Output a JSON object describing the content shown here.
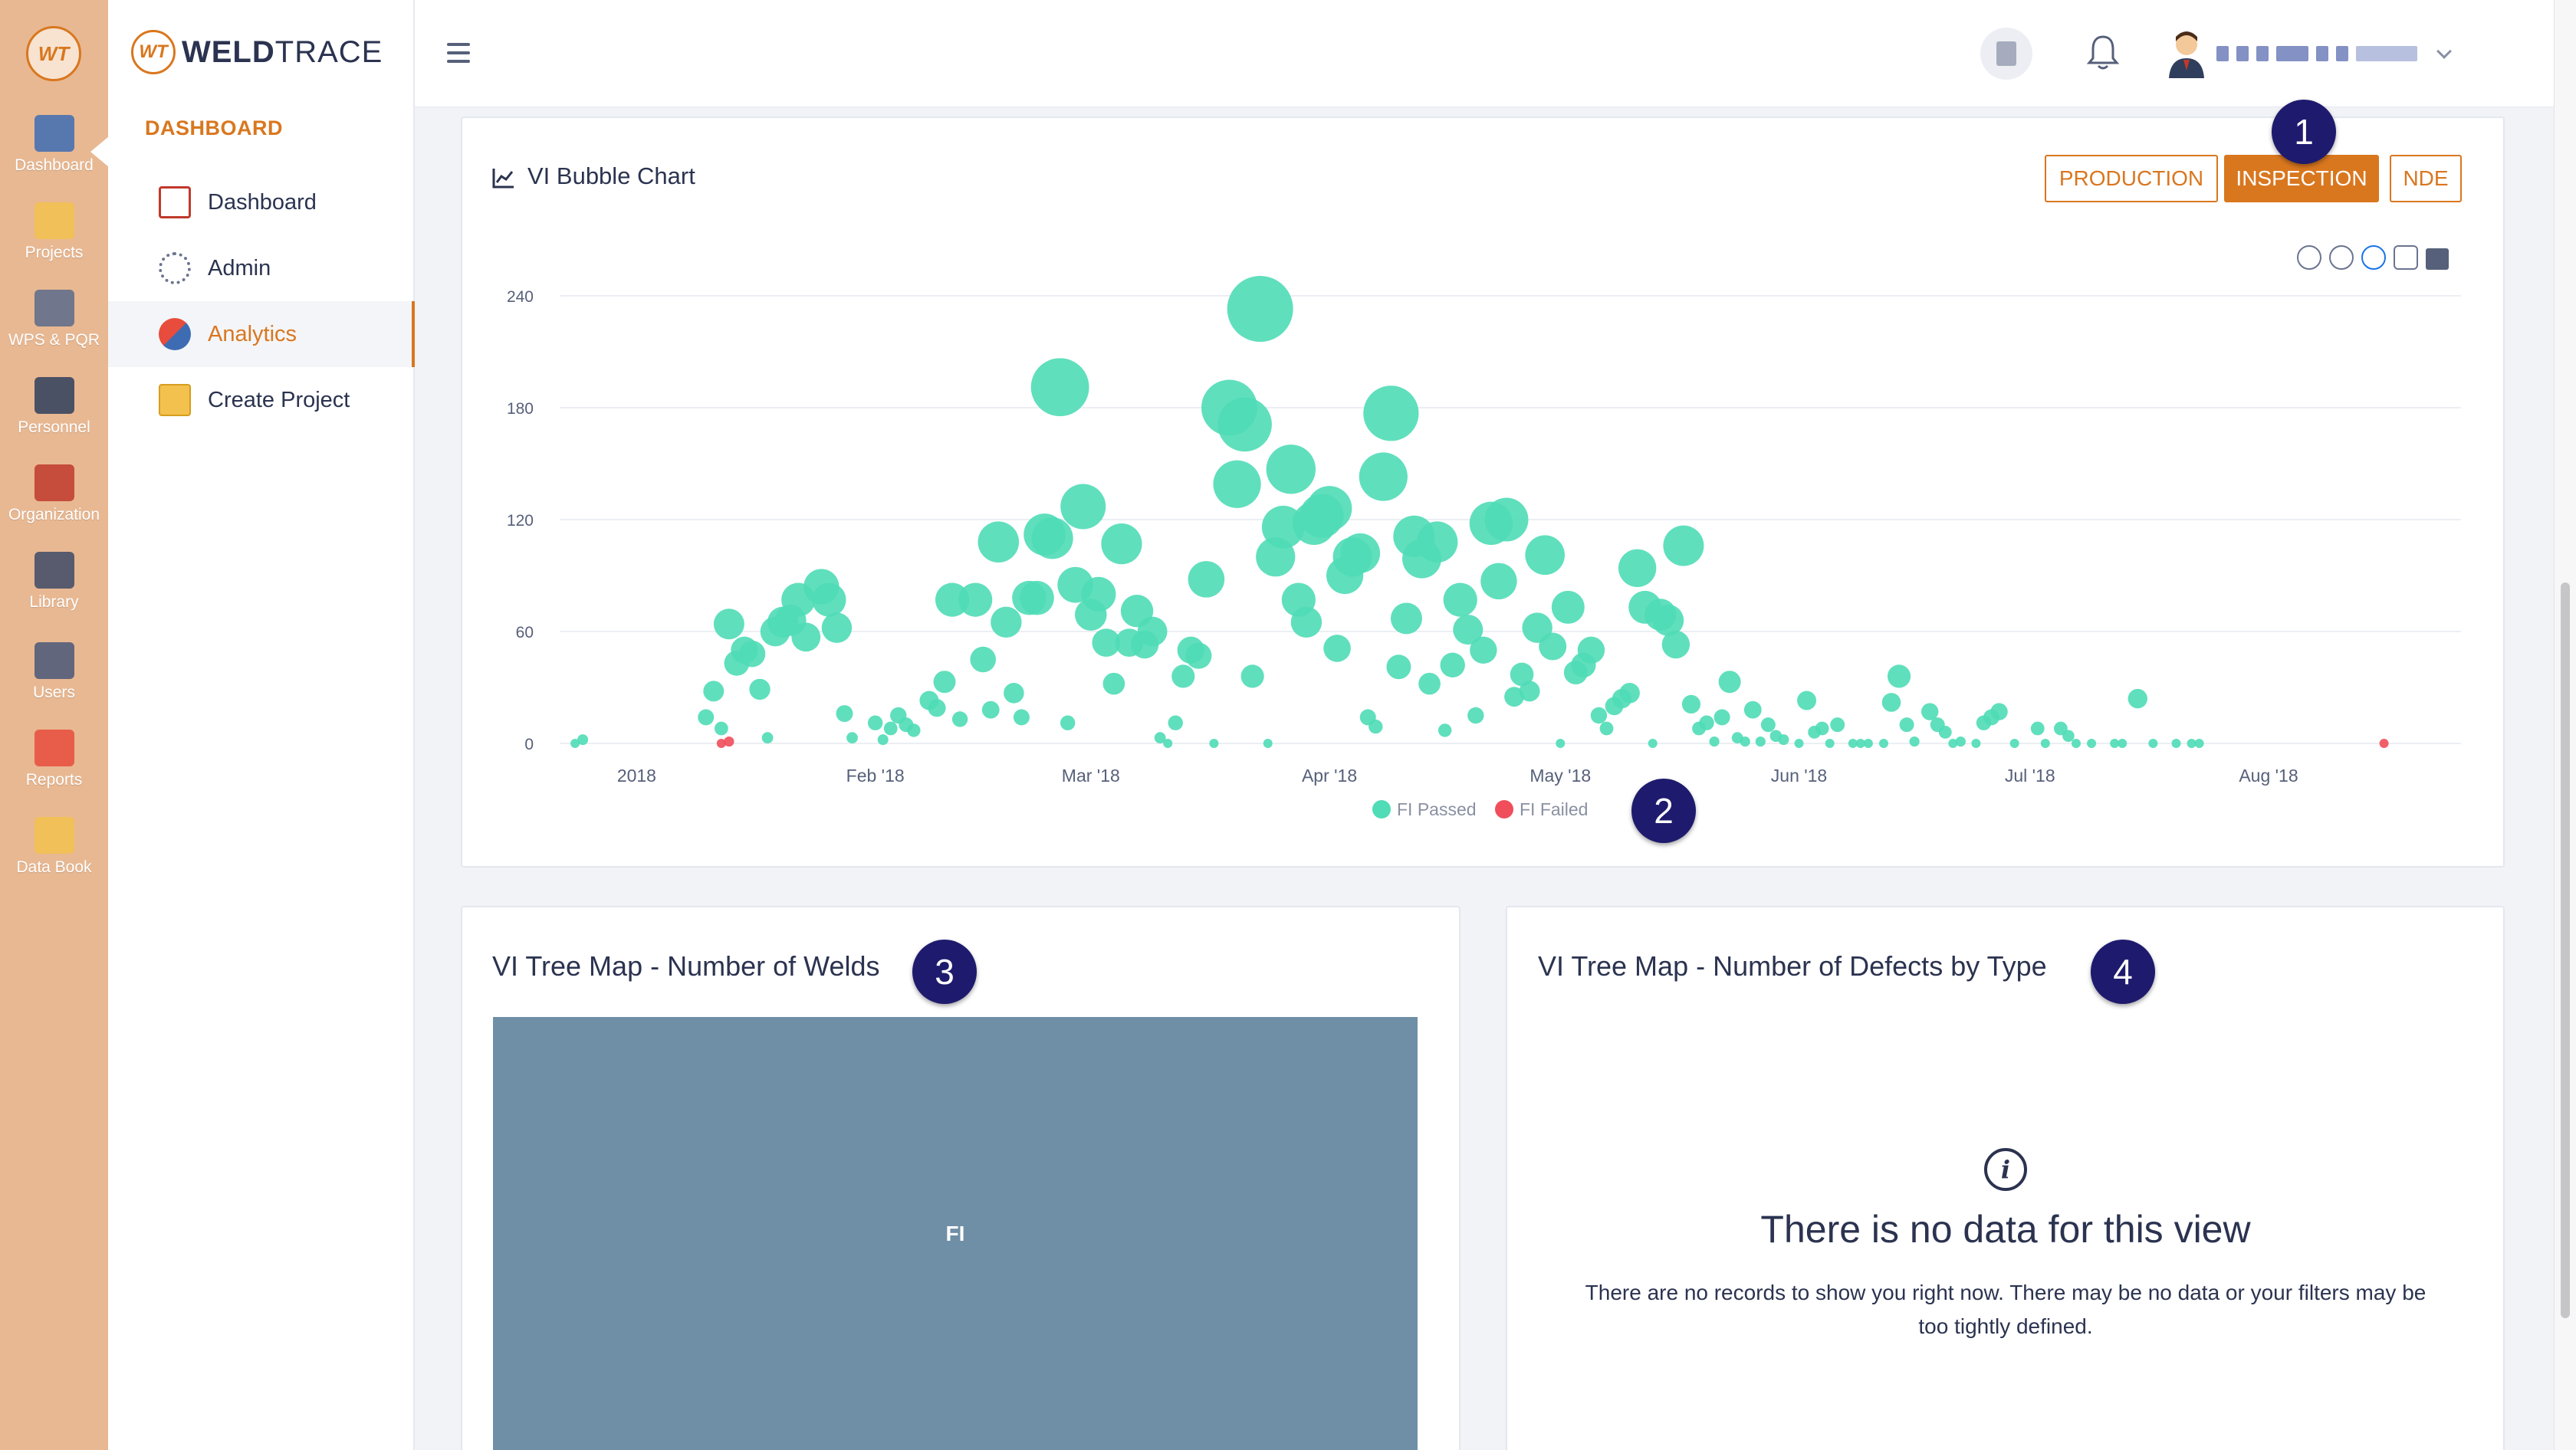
{
  "iconbar": {
    "logo": "WT",
    "items": [
      {
        "label": "Dashboard",
        "icon": "dashboard-monitor-icon"
      },
      {
        "label": "Projects",
        "icon": "projects-folder-icon"
      },
      {
        "label": "WPS & PQR",
        "icon": "wps-pqr-clipboard-icon"
      },
      {
        "label": "Personnel",
        "icon": "welder-personnel-icon"
      },
      {
        "label": "Organization",
        "icon": "organization-icon"
      },
      {
        "label": "Library",
        "icon": "library-book-icon"
      },
      {
        "label": "Users",
        "icon": "users-group-icon"
      },
      {
        "label": "Reports",
        "icon": "reports-clipboard-icon"
      },
      {
        "label": "Data Book",
        "icon": "data-book-icon"
      }
    ]
  },
  "brand": {
    "mark": "WT",
    "name_bold": "WELD",
    "name_light": "TRACE"
  },
  "nav": {
    "section": "DASHBOARD",
    "items": [
      {
        "label": "Dashboard",
        "icon": "dashboard-chart-icon"
      },
      {
        "label": "Admin",
        "icon": "admin-gear-icon"
      },
      {
        "label": "Analytics",
        "icon": "analytics-icon"
      },
      {
        "label": "Create Project",
        "icon": "folder-add-icon"
      }
    ]
  },
  "colors": {
    "accent": "#d9771f",
    "iconbar": "#e8b892",
    "passed": "#4fdcb6",
    "failed": "#ef4e5a",
    "treemap": "#6f8fa6",
    "badge": "#1e1b6e"
  },
  "bubble_card": {
    "title": "VI Bubble Chart",
    "tabs": {
      "production": "PRODUCTION",
      "inspection": "INSPECTION",
      "nde": "NDE"
    },
    "active_tab": "INSPECTION"
  },
  "badges": {
    "b1": "1",
    "b2": "2",
    "b3": "3",
    "b4": "4"
  },
  "treemap_welds": {
    "title": "VI Tree Map - Number of Welds",
    "cell_label": "FI"
  },
  "treemap_defects": {
    "title": "VI Tree Map - Number of Defects by Type",
    "empty_title": "There is no data for this view",
    "empty_text": "There are no records to show you right now. There may be no data or your filters may be too tightly defined."
  },
  "chart_data": {
    "type": "scatter",
    "title": "VI Bubble Chart",
    "x_ticks": [
      "2018",
      "Feb '18",
      "Mar '18",
      "Apr '18",
      "May '18",
      "Jun '18",
      "Jul '18",
      "Aug '18"
    ],
    "y_ticks": [
      0,
      60,
      120,
      180,
      240
    ],
    "ylim": [
      0,
      240
    ],
    "grid": true,
    "legend": "bottom-center",
    "series": [
      {
        "name": "FI Passed",
        "color": "#4fdcb6",
        "points": [
          [
            "2017-12-24",
            0
          ],
          [
            "2017-12-25",
            2
          ],
          [
            "2018-01-10",
            14
          ],
          [
            "2018-01-11",
            28
          ],
          [
            "2018-01-12",
            8
          ],
          [
            "2018-01-13",
            64
          ],
          [
            "2018-01-14",
            43
          ],
          [
            "2018-01-15",
            50
          ],
          [
            "2018-01-16",
            48
          ],
          [
            "2018-01-17",
            29
          ],
          [
            "2018-01-18",
            3
          ],
          [
            "2018-01-19",
            60
          ],
          [
            "2018-01-20",
            65
          ],
          [
            "2018-01-21",
            66
          ],
          [
            "2018-01-22",
            77
          ],
          [
            "2018-01-23",
            57
          ],
          [
            "2018-01-25",
            84
          ],
          [
            "2018-01-26",
            77
          ],
          [
            "2018-01-27",
            62
          ],
          [
            "2018-01-28",
            16
          ],
          [
            "2018-01-29",
            3
          ],
          [
            "2018-02-01",
            11
          ],
          [
            "2018-02-02",
            2
          ],
          [
            "2018-02-03",
            8
          ],
          [
            "2018-02-04",
            15
          ],
          [
            "2018-02-05",
            10
          ],
          [
            "2018-02-06",
            7
          ],
          [
            "2018-02-08",
            23
          ],
          [
            "2018-02-09",
            19
          ],
          [
            "2018-02-10",
            33
          ],
          [
            "2018-02-11",
            77
          ],
          [
            "2018-02-12",
            13
          ],
          [
            "2018-02-14",
            77
          ],
          [
            "2018-02-15",
            45
          ],
          [
            "2018-02-16",
            18
          ],
          [
            "2018-02-17",
            108
          ],
          [
            "2018-02-18",
            65
          ],
          [
            "2018-02-19",
            27
          ],
          [
            "2018-02-20",
            14
          ],
          [
            "2018-02-21",
            78
          ],
          [
            "2018-02-22",
            78
          ],
          [
            "2018-02-23",
            112
          ],
          [
            "2018-02-24",
            110
          ],
          [
            "2018-02-25",
            191
          ],
          [
            "2018-02-26",
            11
          ],
          [
            "2018-02-27",
            85
          ],
          [
            "2018-02-28",
            127
          ],
          [
            "2018-03-01",
            69
          ],
          [
            "2018-03-02",
            80
          ],
          [
            "2018-03-03",
            54
          ],
          [
            "2018-03-04",
            32
          ],
          [
            "2018-03-05",
            107
          ],
          [
            "2018-03-06",
            54
          ],
          [
            "2018-03-07",
            71
          ],
          [
            "2018-03-08",
            53
          ],
          [
            "2018-03-09",
            60
          ],
          [
            "2018-03-10",
            3
          ],
          [
            "2018-03-11",
            0
          ],
          [
            "2018-03-12",
            11
          ],
          [
            "2018-03-13",
            36
          ],
          [
            "2018-03-14",
            50
          ],
          [
            "2018-03-15",
            47
          ],
          [
            "2018-03-16",
            88
          ],
          [
            "2018-03-17",
            0
          ],
          [
            "2018-03-19",
            180
          ],
          [
            "2018-03-20",
            139
          ],
          [
            "2018-03-21",
            171
          ],
          [
            "2018-03-22",
            36
          ],
          [
            "2018-03-23",
            233
          ],
          [
            "2018-03-24",
            0
          ],
          [
            "2018-03-25",
            100
          ],
          [
            "2018-03-26",
            116
          ],
          [
            "2018-03-27",
            147
          ],
          [
            "2018-03-28",
            77
          ],
          [
            "2018-03-29",
            65
          ],
          [
            "2018-03-30",
            118
          ],
          [
            "2018-03-31",
            122
          ],
          [
            "2018-04-01",
            126
          ],
          [
            "2018-04-02",
            51
          ],
          [
            "2018-04-03",
            90
          ],
          [
            "2018-04-04",
            100
          ],
          [
            "2018-04-05",
            102
          ],
          [
            "2018-04-06",
            14
          ],
          [
            "2018-04-07",
            9
          ],
          [
            "2018-04-08",
            143
          ],
          [
            "2018-04-09",
            177
          ],
          [
            "2018-04-10",
            41
          ],
          [
            "2018-04-11",
            67
          ],
          [
            "2018-04-12",
            111
          ],
          [
            "2018-04-13",
            99
          ],
          [
            "2018-04-14",
            32
          ],
          [
            "2018-04-15",
            108
          ],
          [
            "2018-04-16",
            7
          ],
          [
            "2018-04-17",
            42
          ],
          [
            "2018-04-18",
            77
          ],
          [
            "2018-04-19",
            61
          ],
          [
            "2018-04-20",
            15
          ],
          [
            "2018-04-21",
            50
          ],
          [
            "2018-04-22",
            118
          ],
          [
            "2018-04-23",
            87
          ],
          [
            "2018-04-24",
            120
          ],
          [
            "2018-04-25",
            25
          ],
          [
            "2018-04-26",
            37
          ],
          [
            "2018-04-27",
            28
          ],
          [
            "2018-04-28",
            62
          ],
          [
            "2018-04-29",
            101
          ],
          [
            "2018-04-30",
            52
          ],
          [
            "2018-05-01",
            0
          ],
          [
            "2018-05-02",
            73
          ],
          [
            "2018-05-03",
            38
          ],
          [
            "2018-05-04",
            42
          ],
          [
            "2018-05-05",
            50
          ],
          [
            "2018-05-06",
            15
          ],
          [
            "2018-05-07",
            8
          ],
          [
            "2018-05-08",
            20
          ],
          [
            "2018-05-09",
            24
          ],
          [
            "2018-05-10",
            27
          ],
          [
            "2018-05-11",
            94
          ],
          [
            "2018-05-12",
            73
          ],
          [
            "2018-05-13",
            0
          ],
          [
            "2018-05-14",
            69
          ],
          [
            "2018-05-15",
            66
          ],
          [
            "2018-05-16",
            53
          ],
          [
            "2018-05-17",
            106
          ],
          [
            "2018-05-18",
            21
          ],
          [
            "2018-05-19",
            8
          ],
          [
            "2018-05-20",
            11
          ],
          [
            "2018-05-21",
            1
          ],
          [
            "2018-05-22",
            14
          ],
          [
            "2018-05-23",
            33
          ],
          [
            "2018-05-24",
            3
          ],
          [
            "2018-05-25",
            1
          ],
          [
            "2018-05-26",
            18
          ],
          [
            "2018-05-27",
            1
          ],
          [
            "2018-05-28",
            10
          ],
          [
            "2018-05-29",
            4
          ],
          [
            "2018-05-30",
            2
          ],
          [
            "2018-06-01",
            0
          ],
          [
            "2018-06-02",
            23
          ],
          [
            "2018-06-03",
            6
          ],
          [
            "2018-06-04",
            8
          ],
          [
            "2018-06-05",
            0
          ],
          [
            "2018-06-06",
            10
          ],
          [
            "2018-06-08",
            0
          ],
          [
            "2018-06-09",
            0
          ],
          [
            "2018-06-10",
            0
          ],
          [
            "2018-06-12",
            0
          ],
          [
            "2018-06-13",
            22
          ],
          [
            "2018-06-14",
            36
          ],
          [
            "2018-06-15",
            10
          ],
          [
            "2018-06-16",
            1
          ],
          [
            "2018-06-18",
            17
          ],
          [
            "2018-06-19",
            10
          ],
          [
            "2018-06-20",
            6
          ],
          [
            "2018-06-21",
            0
          ],
          [
            "2018-06-22",
            1
          ],
          [
            "2018-06-24",
            0
          ],
          [
            "2018-06-25",
            11
          ],
          [
            "2018-06-26",
            14
          ],
          [
            "2018-06-27",
            17
          ],
          [
            "2018-06-29",
            0
          ],
          [
            "2018-07-02",
            8
          ],
          [
            "2018-07-03",
            0
          ],
          [
            "2018-07-05",
            8
          ],
          [
            "2018-07-06",
            4
          ],
          [
            "2018-07-07",
            0
          ],
          [
            "2018-07-09",
            0
          ],
          [
            "2018-07-12",
            0
          ],
          [
            "2018-07-13",
            0
          ],
          [
            "2018-07-15",
            24
          ],
          [
            "2018-07-17",
            0
          ],
          [
            "2018-07-20",
            0
          ],
          [
            "2018-07-22",
            0
          ],
          [
            "2018-07-23",
            0
          ]
        ]
      },
      {
        "name": "FI Failed",
        "color": "#ef4e5a",
        "points": [
          [
            "2018-01-12",
            0
          ],
          [
            "2018-01-13",
            1
          ],
          [
            "2018-08-16",
            0
          ]
        ]
      }
    ]
  }
}
